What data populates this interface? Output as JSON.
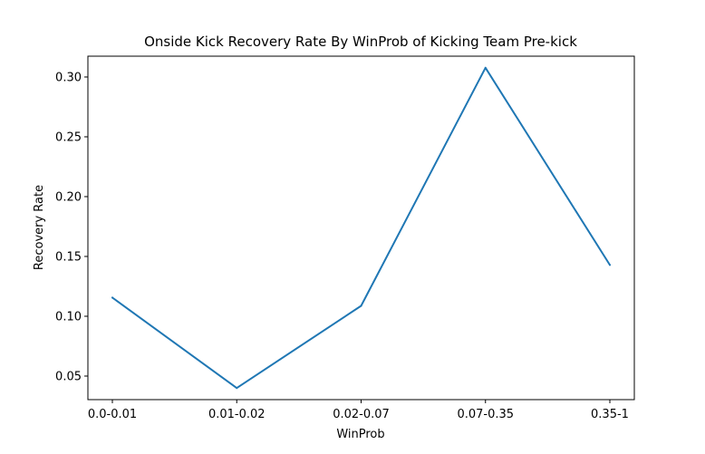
{
  "chart_data": {
    "type": "line",
    "title": "Onside Kick Recovery Rate By WinProb of Kicking Team Pre-kick",
    "xlabel": "WinProb",
    "ylabel": "Recovery Rate",
    "categories": [
      "0.0-0.01",
      "0.01-0.02",
      "0.02-0.07",
      "0.07-0.35",
      "0.35-1"
    ],
    "series": [
      {
        "values": [
          0.1156,
          0.04,
          0.1087,
          0.3077,
          0.1429
        ],
        "color": "#1f77b4"
      }
    ],
    "ylim": [
      0.0303,
      0.3174
    ],
    "yticks": [
      0.05,
      0.1,
      0.15,
      0.2,
      0.25,
      0.3
    ],
    "ytick_labels": [
      "0.05",
      "0.10",
      "0.15",
      "0.20",
      "0.25",
      "0.30"
    ],
    "grid": false,
    "legend": "none"
  }
}
